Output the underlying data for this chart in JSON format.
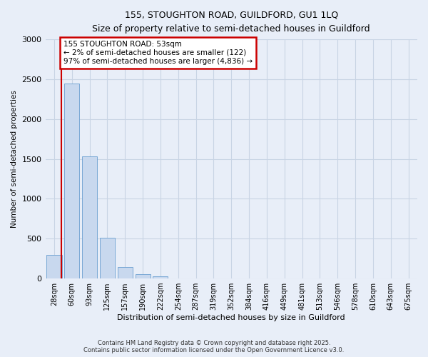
{
  "title_line1": "155, STOUGHTON ROAD, GUILDFORD, GU1 1LQ",
  "title_line2": "Size of property relative to semi-detached houses in Guildford",
  "xlabel": "Distribution of semi-detached houses by size in Guildford",
  "ylabel": "Number of semi-detached properties",
  "bin_labels": [
    "28sqm",
    "60sqm",
    "93sqm",
    "125sqm",
    "157sqm",
    "190sqm",
    "222sqm",
    "254sqm",
    "287sqm",
    "319sqm",
    "352sqm",
    "384sqm",
    "416sqm",
    "449sqm",
    "481sqm",
    "513sqm",
    "546sqm",
    "578sqm",
    "610sqm",
    "643sqm",
    "675sqm"
  ],
  "bar_values": [
    300,
    2450,
    1530,
    510,
    140,
    55,
    30,
    5,
    2,
    1,
    0,
    0,
    0,
    0,
    0,
    0,
    0,
    0,
    0,
    0,
    0
  ],
  "bar_color": "#c8d8ee",
  "bar_edge_color": "#6a9fd0",
  "property_label": "155 STOUGHTON ROAD: 53sqm",
  "pct_smaller": 2,
  "pct_larger": 97,
  "n_smaller": 122,
  "n_larger": 4836,
  "annotation_box_color": "#ffffff",
  "annotation_box_edge": "#cc0000",
  "vline_color": "#cc0000",
  "ylim": [
    0,
    3000
  ],
  "yticks": [
    0,
    500,
    1000,
    1500,
    2000,
    2500,
    3000
  ],
  "grid_color": "#c8d4e4",
  "bg_color": "#e8eef8",
  "footer_line1": "Contains HM Land Registry data © Crown copyright and database right 2025.",
  "footer_line2": "Contains public sector information licensed under the Open Government Licence v3.0."
}
